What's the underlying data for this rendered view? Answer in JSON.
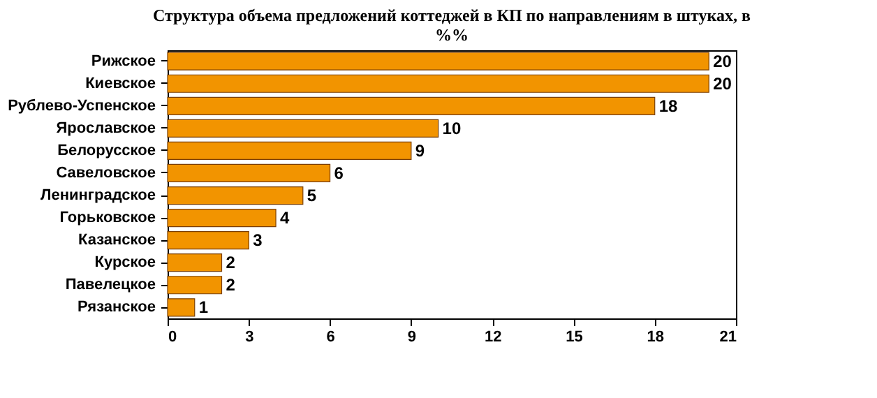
{
  "chart_data": {
    "type": "bar",
    "orientation": "horizontal",
    "title": [
      "Структура объема предложений коттеджей в КП по направлениям в штуках, в",
      "%%"
    ],
    "categories": [
      "Рижское",
      "Киевское",
      "Рублево-Успенское",
      "Ярославское",
      "Белорусское",
      "Савеловское",
      "Ленинградское",
      "Горьковское",
      "Казанское",
      "Курское",
      "Павелецкое",
      "Рязанское"
    ],
    "values": [
      20,
      20,
      18,
      10,
      9,
      6,
      5,
      4,
      3,
      2,
      2,
      1
    ],
    "color": "#f29400",
    "xlim": [
      0,
      21
    ],
    "xticks": [
      0,
      3,
      6,
      9,
      12,
      15,
      18,
      21
    ],
    "data_labels": true
  }
}
